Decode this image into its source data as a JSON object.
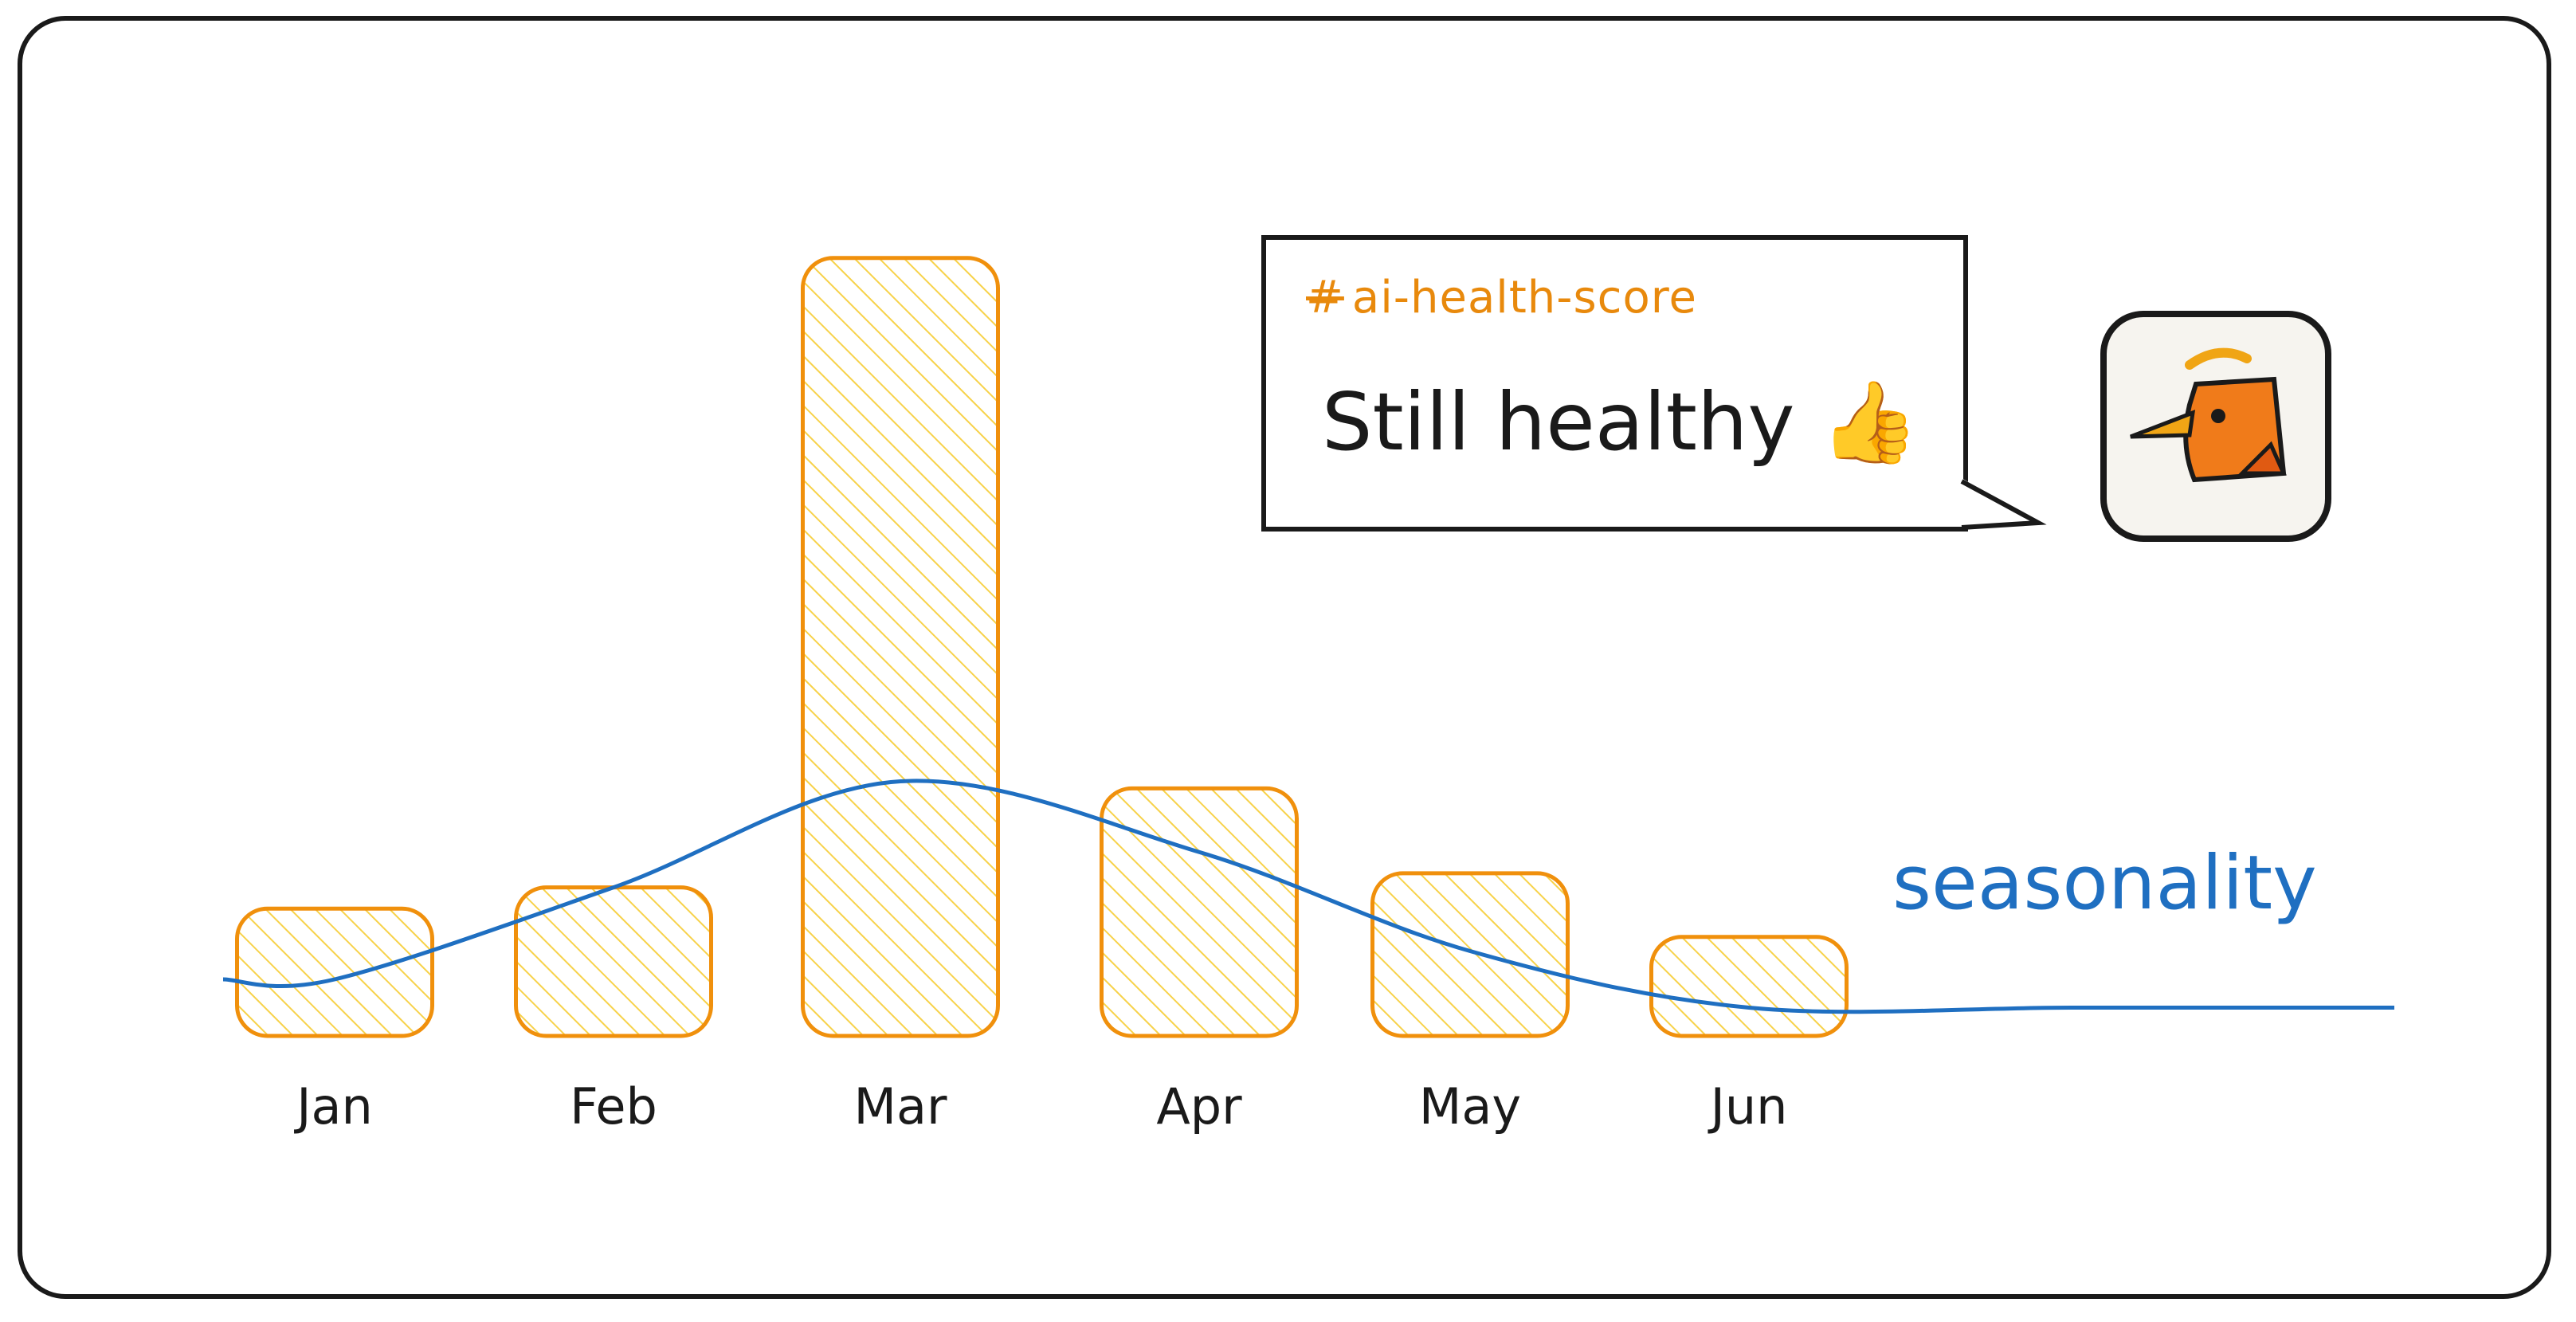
{
  "chart_data": {
    "type": "bar",
    "categories": [
      "Jan",
      "Feb",
      "Mar",
      "Apr",
      "May",
      "Jun"
    ],
    "values": [
      18,
      21,
      110,
      35,
      23,
      14
    ],
    "ylim": [
      0,
      120
    ],
    "series": [
      {
        "type": "bar",
        "values": [
          18,
          21,
          110,
          35,
          23,
          14
        ]
      },
      {
        "type": "line",
        "name": "seasonality",
        "values": [
          8,
          21,
          36,
          26,
          12,
          4
        ]
      }
    ],
    "colors": {
      "bar": "#f0900c",
      "bar_hatch": "#f7d24a",
      "line": "#1f6fc1",
      "text": "#1a1a1a"
    },
    "grid": false,
    "legend": "right"
  },
  "message": {
    "channel": "ai-health-score",
    "hash": "#",
    "text": "Still healthy 👍"
  },
  "avatar": {
    "icon": "bird-logo-icon",
    "colors": {
      "body": "#f07b1a",
      "beak": "#f0a515"
    }
  }
}
